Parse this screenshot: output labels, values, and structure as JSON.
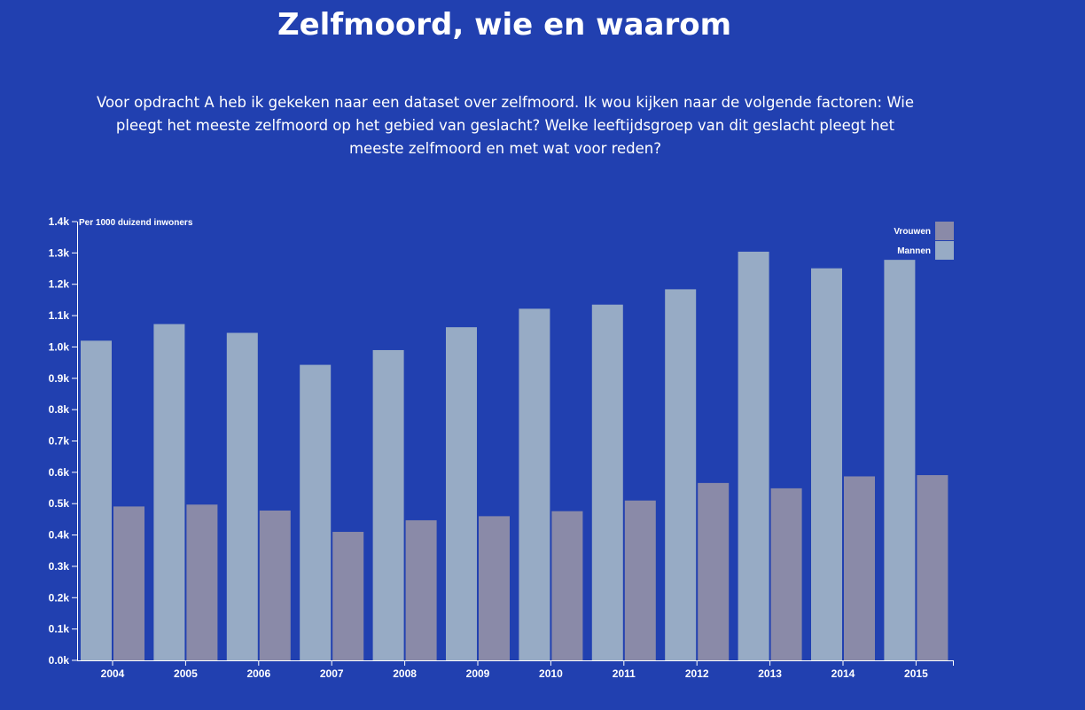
{
  "page": {
    "title": "Zelfmoord, wie en waarom",
    "intro": "Voor opdracht A heb ik gekeken naar een dataset over zelfmoord. Ik wou kijken naar de volgende factoren: Wie pleegt het meeste zelfmoord op het gebied van geslacht? Welke leeftijdsgroep van dit geslacht pleegt het meeste zelfmoord en met wat voor reden?"
  },
  "colors": {
    "background": "#2140b0",
    "mannen": "#97abc5",
    "vrouwen": "#8a8aa8",
    "axis": "#ffffff"
  },
  "chart_data": {
    "type": "bar",
    "title": "",
    "xlabel": "",
    "ylabel": "Per 1000 duizend inwoners",
    "categories": [
      "2004",
      "2005",
      "2006",
      "2007",
      "2008",
      "2009",
      "2010",
      "2011",
      "2012",
      "2013",
      "2014",
      "2015"
    ],
    "series": [
      {
        "name": "Mannen",
        "values": [
          1020,
          1073,
          1045,
          943,
          990,
          1063,
          1122,
          1135,
          1184,
          1304,
          1251,
          1278
        ]
      },
      {
        "name": "Vrouwen",
        "values": [
          491,
          497,
          478,
          410,
          447,
          460,
          476,
          510,
          566,
          549,
          587,
          591
        ]
      }
    ],
    "ylim": [
      0,
      1400
    ],
    "yticks": [
      0,
      100,
      200,
      300,
      400,
      500,
      600,
      700,
      800,
      900,
      1000,
      1100,
      1200,
      1300,
      1400
    ],
    "ytick_labels": [
      "0.0k",
      "0.1k",
      "0.2k",
      "0.3k",
      "0.4k",
      "0.5k",
      "0.6k",
      "0.7k",
      "0.8k",
      "0.9k",
      "1.0k",
      "1.1k",
      "1.2k",
      "1.3k",
      "1.4k"
    ],
    "legend": {
      "placement": "top-right",
      "entries": [
        "Vrouwen",
        "Mannen"
      ]
    },
    "grid": false
  }
}
